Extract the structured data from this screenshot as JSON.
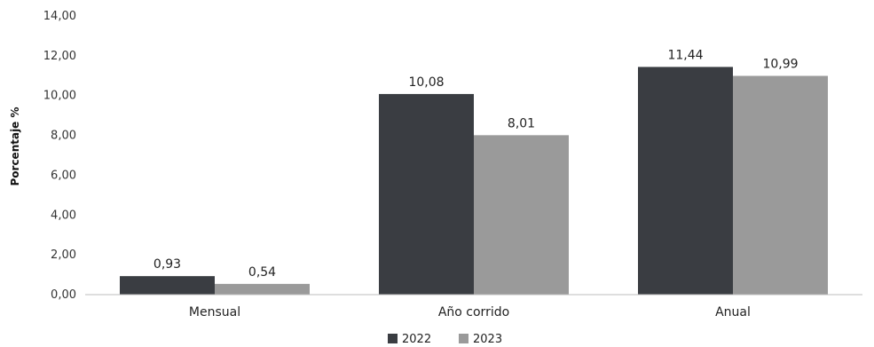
{
  "chart_data": {
    "type": "bar",
    "title": "",
    "xlabel": "",
    "ylabel": "Porcentaje %",
    "categories": [
      "Mensual",
      "Año corrido",
      "Anual"
    ],
    "series": [
      {
        "name": "2022",
        "values": [
          0.93,
          10.08,
          11.44
        ],
        "labels": [
          "0,93",
          "10,08",
          "11,44"
        ],
        "color": "#3a3d42"
      },
      {
        "name": "2023",
        "values": [
          0.54,
          8.01,
          10.99
        ],
        "labels": [
          "0,54",
          "8,01",
          "10,99"
        ],
        "color": "#9a9a9a"
      }
    ],
    "ylim": [
      0,
      14
    ],
    "yticks": [
      0,
      2,
      4,
      6,
      8,
      10,
      12,
      14
    ],
    "ytick_labels": [
      "0,00",
      "2,00",
      "4,00",
      "6,00",
      "8,00",
      "10,00",
      "12,00",
      "14,00"
    ],
    "grid": false,
    "legend_position": "bottom-center"
  }
}
